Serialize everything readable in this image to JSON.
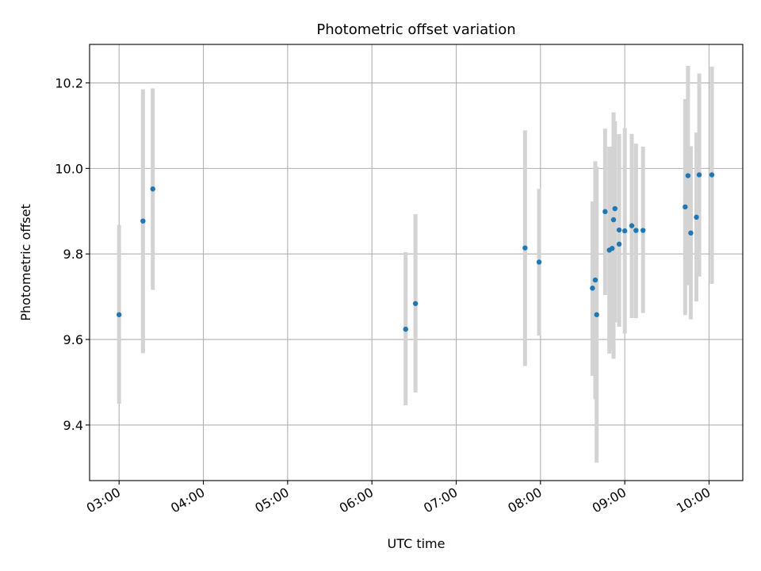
{
  "chart_data": {
    "type": "scatter",
    "title": "Photometric offset variation",
    "xlabel": "UTC time",
    "ylabel": "Photometric offset",
    "x_format": "time HH:MM (UTC)",
    "xlim": [
      "02:39",
      "10:24"
    ],
    "ylim": [
      9.27,
      10.29
    ],
    "x_ticks": [
      "03:00",
      "04:00",
      "05:00",
      "06:00",
      "07:00",
      "08:00",
      "09:00",
      "10:00"
    ],
    "y_ticks": [
      "9.4",
      "9.6",
      "9.8",
      "10.0",
      "10.2"
    ],
    "grid": true,
    "colors": {
      "point": "#1f77b4",
      "errorbar": "#d3d3d3"
    },
    "series": [
      {
        "points": [
          {
            "time": "03:00",
            "y": 9.658,
            "ylow": 9.45,
            "yhigh": 9.868
          },
          {
            "time": "03:17",
            "y": 9.877,
            "ylow": 9.568,
            "yhigh": 10.185
          },
          {
            "time": "03:24",
            "y": 9.952,
            "ylow": 9.716,
            "yhigh": 10.187
          },
          {
            "time": "06:24",
            "y": 9.624,
            "ylow": 9.446,
            "yhigh": 9.804
          },
          {
            "time": "06:31",
            "y": 9.684,
            "ylow": 9.476,
            "yhigh": 9.893
          },
          {
            "time": "07:49",
            "y": 9.814,
            "ylow": 9.538,
            "yhigh": 10.089
          },
          {
            "time": "07:59",
            "y": 9.781,
            "ylow": 9.609,
            "yhigh": 9.952
          },
          {
            "time": "08:37",
            "y": 9.72,
            "ylow": 9.515,
            "yhigh": 9.923
          },
          {
            "time": "08:39",
            "y": 9.739,
            "ylow": 9.46,
            "yhigh": 10.017
          },
          {
            "time": "08:40",
            "y": 9.658,
            "ylow": 9.312,
            "yhigh": 10.004
          },
          {
            "time": "08:46",
            "y": 9.899,
            "ylow": 9.704,
            "yhigh": 10.093
          },
          {
            "time": "08:49",
            "y": 9.809,
            "ylow": 9.567,
            "yhigh": 10.051
          },
          {
            "time": "08:51",
            "y": 9.813,
            "ylow": 9.575,
            "yhigh": 10.051
          },
          {
            "time": "08:52",
            "y": 9.88,
            "ylow": 9.555,
            "yhigh": 10.131
          },
          {
            "time": "08:53",
            "y": 9.906,
            "ylow": 9.64,
            "yhigh": 10.11
          },
          {
            "time": "08:56",
            "y": 9.823,
            "ylow": 9.63,
            "yhigh": 10.08
          },
          {
            "time": "08:56",
            "y": 9.856,
            "ylow": 9.63,
            "yhigh": 10.08
          },
          {
            "time": "09:00",
            "y": 9.854,
            "ylow": 9.614,
            "yhigh": 10.094
          },
          {
            "time": "09:05",
            "y": 9.866,
            "ylow": 9.65,
            "yhigh": 10.081
          },
          {
            "time": "09:08",
            "y": 9.855,
            "ylow": 9.65,
            "yhigh": 10.058
          },
          {
            "time": "09:13",
            "y": 9.855,
            "ylow": 9.662,
            "yhigh": 10.051
          },
          {
            "time": "09:43",
            "y": 9.91,
            "ylow": 9.657,
            "yhigh": 10.162
          },
          {
            "time": "09:45",
            "y": 9.983,
            "ylow": 9.727,
            "yhigh": 10.24
          },
          {
            "time": "09:47",
            "y": 9.849,
            "ylow": 9.647,
            "yhigh": 10.052
          },
          {
            "time": "09:51",
            "y": 9.886,
            "ylow": 9.689,
            "yhigh": 10.084
          },
          {
            "time": "09:53",
            "y": 9.985,
            "ylow": 9.747,
            "yhigh": 10.222
          },
          {
            "time": "10:02",
            "y": 9.985,
            "ylow": 9.73,
            "yhigh": 10.238
          }
        ]
      }
    ]
  }
}
